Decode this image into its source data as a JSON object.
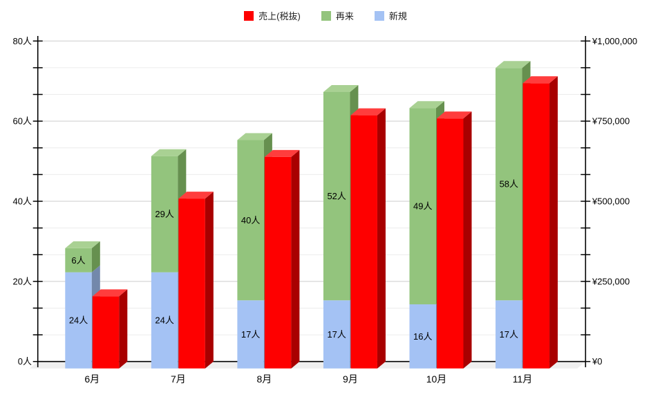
{
  "legend": {
    "items": [
      {
        "label": "売上(税抜)",
        "color": "#fe0000"
      },
      {
        "label": "再来",
        "color": "#93c47d"
      },
      {
        "label": "新規",
        "color": "#a4c2f4"
      }
    ]
  },
  "chart_data": {
    "type": "bar",
    "subtype": "3d-columns: stacked customer counts (left axis) + revenue column (right axis)",
    "title": "",
    "categories": [
      "6月",
      "7月",
      "8月",
      "9月",
      "10月",
      "11月"
    ],
    "series": [
      {
        "name": "新規",
        "axis": "left",
        "unit": "人",
        "values": [
          24,
          24,
          17,
          17,
          16,
          17
        ],
        "labels": [
          "24人",
          "24人",
          "17人",
          "17人",
          "16人",
          "17人"
        ],
        "color_front": "#a4c2f4",
        "color_side": "#7388ab",
        "color_top": "#b9d2f8"
      },
      {
        "name": "再来",
        "axis": "left",
        "unit": "人",
        "values": [
          6,
          29,
          40,
          52,
          49,
          58
        ],
        "labels": [
          "6人",
          "29人",
          "40人",
          "52人",
          "49人",
          "58人"
        ],
        "color_front": "#93c47d",
        "color_side": "#66904f",
        "color_top": "#a9d193"
      },
      {
        "name": "売上(税抜)",
        "axis": "right",
        "unit": "¥",
        "values": [
          225000,
          530000,
          660000,
          790000,
          780000,
          890000
        ],
        "labels": [
          "",
          "",
          "",
          "",
          "",
          ""
        ],
        "color_front": "#fe0000",
        "color_side": "#a80000",
        "color_top": "#ff3d3d"
      }
    ],
    "left_axis": {
      "min": 0,
      "max": 80,
      "tick_labels": [
        "0人",
        "20人",
        "40人",
        "60人",
        "80人"
      ],
      "minor_divisions_per_major": 3
    },
    "right_axis": {
      "min": 0,
      "max": 1000000,
      "tick_labels": [
        "¥0",
        "¥250,000",
        "¥500,000",
        "¥750,000",
        "¥1,000,000"
      ]
    },
    "grid": {
      "major_color": "#cccccc",
      "minor_color": "#ececec",
      "floor_color": "#efefef",
      "axis_color": "#000000",
      "label_color": "#000000"
    },
    "legend_position": "top-center"
  }
}
